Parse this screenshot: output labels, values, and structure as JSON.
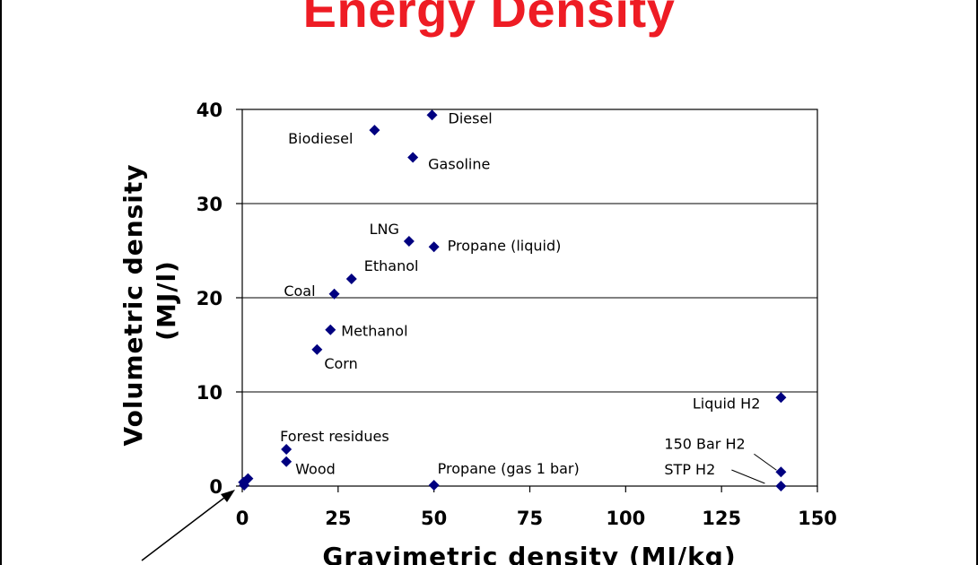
{
  "title": "Energy Density",
  "chart_data": {
    "type": "scatter",
    "title": "Energy Density",
    "xlabel": "Gravimetric density (MJ/kg)",
    "ylabel_lines": [
      "Volumetric density",
      "(MJ/l)"
    ],
    "xlim": [
      0,
      150
    ],
    "ylim": [
      0,
      40
    ],
    "x_ticks": [
      "0",
      "25",
      "50",
      "75",
      "100",
      "125",
      "150"
    ],
    "y_ticks": [
      "0",
      "10",
      "20",
      "30",
      "40"
    ],
    "grid": "horizontal",
    "marker": "diamond",
    "marker_color": "#000080",
    "points": [
      {
        "label": "Diesel",
        "x": 49.5,
        "y": 39.4
      },
      {
        "label": "Biodiesel",
        "x": 34.5,
        "y": 37.8
      },
      {
        "label": "Gasoline",
        "x": 44.5,
        "y": 34.9
      },
      {
        "label": "LNG",
        "x": 43.5,
        "y": 26.0
      },
      {
        "label": "Propane (liquid)",
        "x": 50.0,
        "y": 25.4
      },
      {
        "label": "Ethanol",
        "x": 28.5,
        "y": 22.0
      },
      {
        "label": "Coal",
        "x": 24.0,
        "y": 20.4
      },
      {
        "label": "Methanol",
        "x": 23.0,
        "y": 16.6
      },
      {
        "label": "Corn",
        "x": 19.5,
        "y": 14.5
      },
      {
        "label": "Liquid H2",
        "x": 140.5,
        "y": 9.4
      },
      {
        "label": "Forest residues",
        "x": 11.5,
        "y": 3.9
      },
      {
        "label": "Wood",
        "x": 11.5,
        "y": 2.6
      },
      {
        "label": "Propane (gas 1 bar)",
        "x": 50.0,
        "y": 0.1
      },
      {
        "label": "150 Bar H2",
        "x": 140.5,
        "y": 1.5
      },
      {
        "label": "STP H2",
        "x": 140.5,
        "y": 0.0
      },
      {
        "label": "",
        "x": 0.3,
        "y": 0.4
      },
      {
        "label": "",
        "x": 1.5,
        "y": 0.8
      },
      {
        "label": "",
        "x": 0.5,
        "y": 0.1
      }
    ]
  }
}
